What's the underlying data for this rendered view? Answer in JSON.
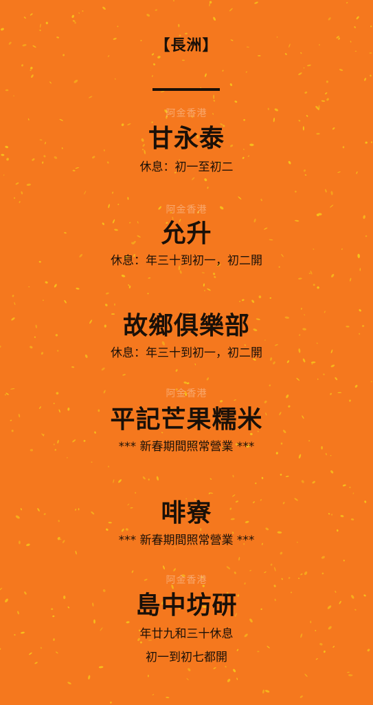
{
  "district": "【長洲】",
  "watermark": "阿金香港",
  "colors": {
    "background": "#f5781e",
    "speckle": "#f6c21c",
    "text": "#1a1008"
  },
  "shops": [
    {
      "name": "甘永泰",
      "notes": [
        "休息：初一至初二"
      ]
    },
    {
      "name": "允升",
      "notes": [
        "休息：年三十到初一，初二開"
      ]
    },
    {
      "name": "故鄉俱樂部",
      "notes": [
        "休息：年三十到初一，初二開"
      ]
    },
    {
      "name": "平記芒果糯米",
      "notes": [
        "*** 新春期間照常營業 ***"
      ]
    },
    {
      "name": "啡寮",
      "notes": [
        "*** 新春期間照常營業 ***"
      ]
    },
    {
      "name": "島中坊研",
      "notes": [
        "年廿九和三十休息",
        "初一到初七都開"
      ]
    }
  ]
}
